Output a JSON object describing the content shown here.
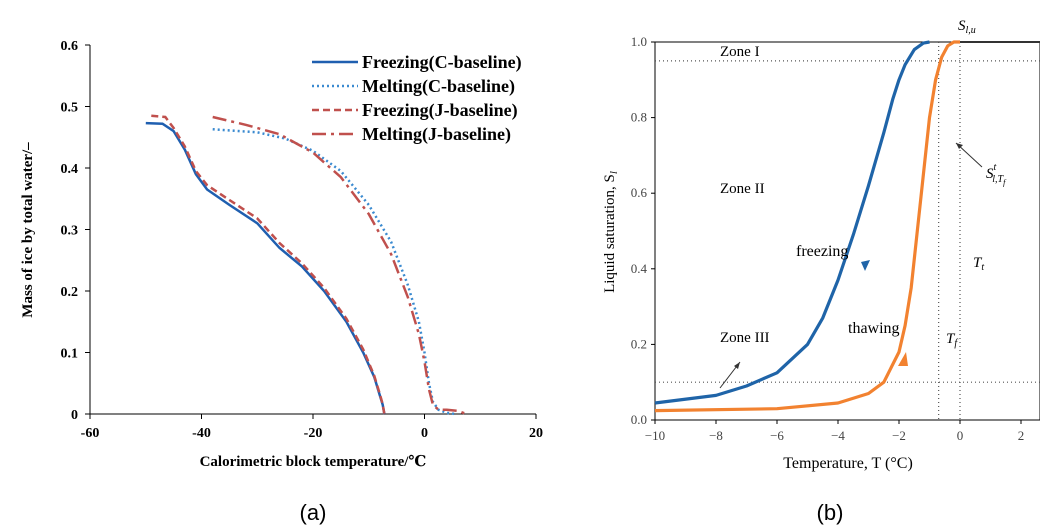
{
  "chart_data": [
    {
      "type": "line",
      "panel_label": "(a)",
      "xlabel": "Calorimetric block temperature/℃",
      "ylabel": "Mass of ice by total water/–",
      "xlim": [
        -60,
        20
      ],
      "ylim": [
        0,
        0.6
      ],
      "xticks": [
        "-60",
        "-40",
        "-20",
        "0",
        "20"
      ],
      "yticks": [
        "0",
        "0.1",
        "0.2",
        "0.3",
        "0.4",
        "0.5",
        "0.6"
      ],
      "grid": false,
      "legend": "top-right",
      "series": [
        {
          "name": "Freezing(C-baseline)",
          "color": "#1f5fb0",
          "style": "solid",
          "x": [
            -50,
            -47,
            -45,
            -43,
            -41,
            -39,
            -35,
            -30,
            -26,
            -22,
            -18,
            -14,
            -11,
            -9,
            -8,
            -7.5,
            -7.3,
            -7.2
          ],
          "y": [
            0.473,
            0.472,
            0.46,
            0.43,
            0.39,
            0.365,
            0.34,
            0.31,
            0.27,
            0.24,
            0.2,
            0.15,
            0.1,
            0.06,
            0.03,
            0.015,
            0.005,
            0
          ]
        },
        {
          "name": "Melting(C-baseline)",
          "color": "#3a8ad0",
          "style": "dotted",
          "x": [
            -38,
            -30,
            -25,
            -20,
            -15,
            -10,
            -6,
            -3,
            -1,
            0,
            0.8,
            1.5,
            2.5,
            4,
            5.5
          ],
          "y": [
            0.463,
            0.458,
            0.448,
            0.428,
            0.395,
            0.34,
            0.28,
            0.21,
            0.15,
            0.1,
            0.05,
            0.02,
            0.007,
            0.002,
            0
          ]
        },
        {
          "name": "Freezing(J-baseline)",
          "color": "#c0504d",
          "style": "dashed",
          "x": [
            -49,
            -46.5,
            -45,
            -43,
            -41,
            -39,
            -35,
            -30,
            -26,
            -22,
            -18,
            -14,
            -11,
            -9,
            -8,
            -7.5,
            -7.3,
            -7.2
          ],
          "y": [
            0.485,
            0.483,
            0.465,
            0.435,
            0.395,
            0.372,
            0.348,
            0.318,
            0.278,
            0.245,
            0.205,
            0.155,
            0.105,
            0.062,
            0.032,
            0.016,
            0.005,
            0
          ]
        },
        {
          "name": "Melting(J-baseline)",
          "color": "#c0504d",
          "style": "dashdot",
          "x": [
            -38,
            -32,
            -26,
            -20,
            -15,
            -10,
            -6,
            -3,
            -1,
            0,
            0.8,
            1.5,
            2.5,
            4,
            6,
            7.5
          ],
          "y": [
            0.483,
            0.47,
            0.455,
            0.425,
            0.385,
            0.325,
            0.26,
            0.19,
            0.13,
            0.085,
            0.04,
            0.015,
            0.007,
            0.007,
            0.005,
            0
          ]
        }
      ]
    },
    {
      "type": "line",
      "panel_label": "(b)",
      "xlabel": "Temperature, T (°C)",
      "ylabel": "Liquid saturation, S",
      "xlim": [
        -10,
        2
      ],
      "ylim": [
        0,
        1.0
      ],
      "xticks": [
        "−10",
        "−8",
        "−6",
        "−4",
        "−2",
        "0",
        "2"
      ],
      "yticks": [
        "0.0",
        "0.2",
        "0.4",
        "0.6",
        "0.8",
        "1.0"
      ],
      "grid": false,
      "series": [
        {
          "name": "freezing",
          "color": "#1f64a8",
          "x": [
            -10,
            -8,
            -7,
            -6,
            -5,
            -4.5,
            -4,
            -3.5,
            -3,
            -2.5,
            -2.2,
            -2,
            -1.8,
            -1.5,
            -1.2,
            -1
          ],
          "y": [
            0.045,
            0.065,
            0.09,
            0.125,
            0.2,
            0.27,
            0.37,
            0.49,
            0.62,
            0.76,
            0.85,
            0.9,
            0.94,
            0.98,
            0.997,
            1.0
          ]
        },
        {
          "name": "thawing",
          "color": "#f28230",
          "x": [
            -10,
            -6,
            -4,
            -3,
            -2.5,
            -2,
            -1.8,
            -1.6,
            -1.4,
            -1.2,
            -1,
            -0.8,
            -0.6,
            -0.4,
            -0.2,
            0
          ],
          "y": [
            0.025,
            0.03,
            0.045,
            0.07,
            0.1,
            0.18,
            0.25,
            0.35,
            0.5,
            0.65,
            0.8,
            0.9,
            0.96,
            0.99,
            1.0,
            1.0
          ]
        }
      ],
      "reference_lines": {
        "horizontal": [
          0.95,
          0.1
        ],
        "vertical": [
          -0.7,
          0
        ]
      },
      "annotations": {
        "zone_1": "Zone I",
        "zone_2": "Zone II",
        "zone_3": "Zone III",
        "freezing": "freezing",
        "thawing": "thawing",
        "s_lu_main": "S",
        "s_lu_sub": "l,u",
        "s_ltf_main": "S",
        "s_ltf_sup": "t",
        "s_ltf_sub": "l,T",
        "s_ltf_subsub": "f",
        "tf_main": "T",
        "tf_sub": "f",
        "tt_main": "T",
        "tt_sub": "t",
        "ylabel_sub": "l"
      }
    }
  ]
}
